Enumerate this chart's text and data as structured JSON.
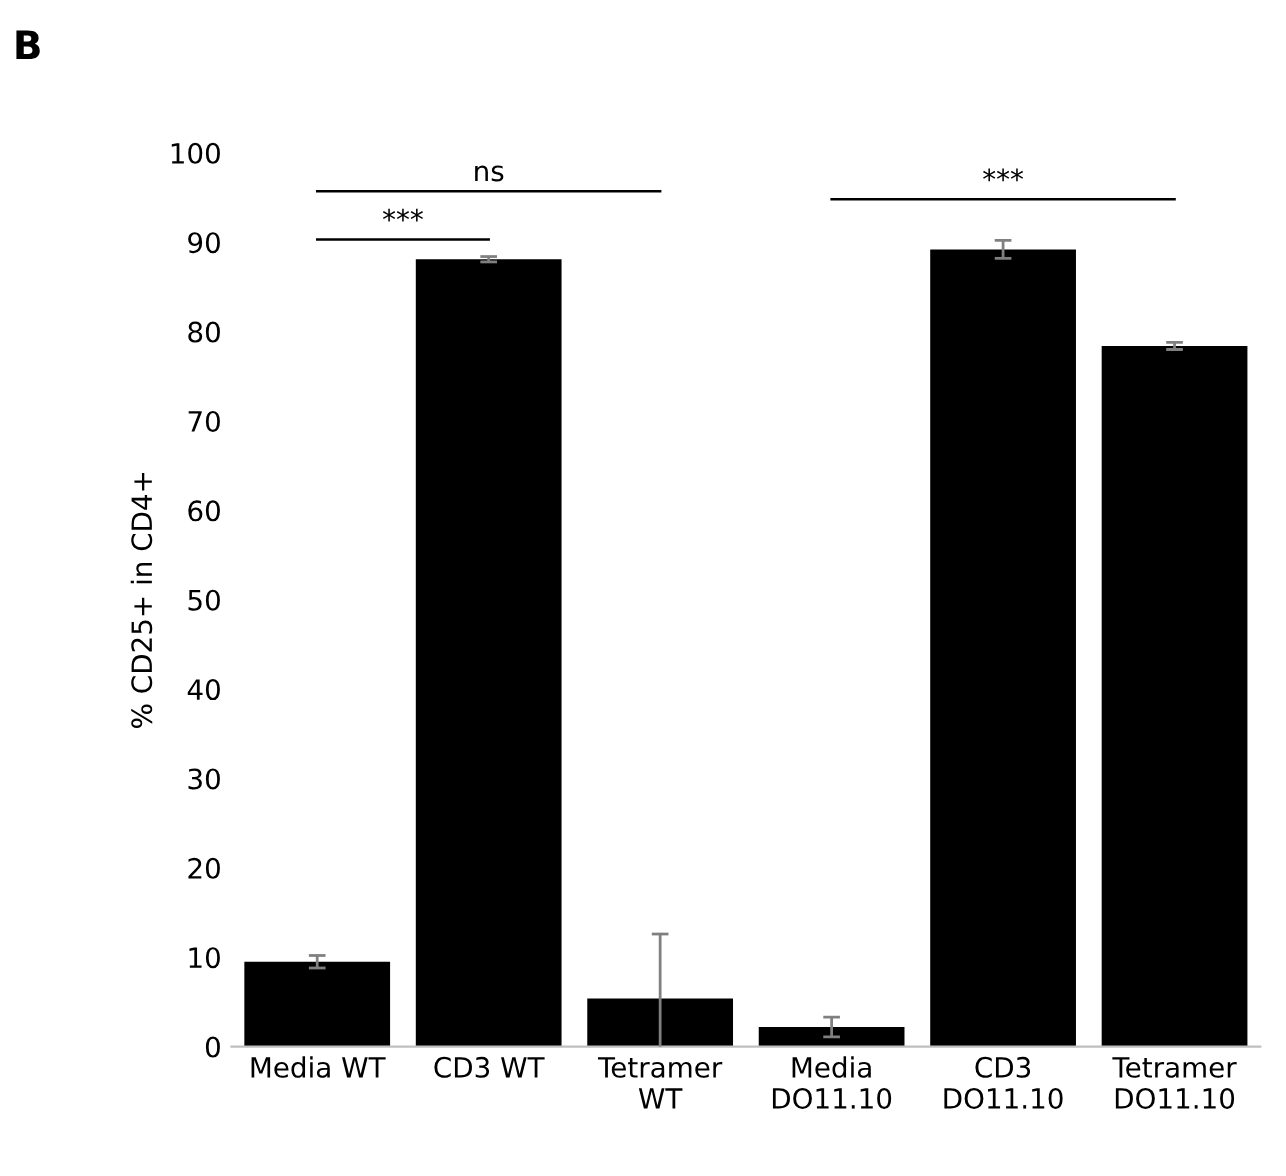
{
  "chart_data": {
    "type": "bar",
    "ylabel": "% CD25+ in CD4+",
    "categories": [
      "Media WT",
      "CD3 WT",
      "Tetramer\nWT",
      "Media\nDO11.10",
      "CD3\nDO11.10",
      "Tetramer\nDO11.10"
    ],
    "values": [
      9.5,
      88.1,
      5.4,
      2.2,
      89.2,
      78.4
    ],
    "errors": [
      0.7,
      0.3,
      7.2,
      1.1,
      1.0,
      0.4
    ],
    "color": "#000000",
    "ylim": [
      0,
      100
    ],
    "yticks": [
      0,
      10,
      20,
      30,
      40,
      50,
      60,
      70,
      80,
      90,
      100
    ],
    "grid": false,
    "annotations": [
      "B",
      "***",
      "ns",
      "***"
    ]
  }
}
